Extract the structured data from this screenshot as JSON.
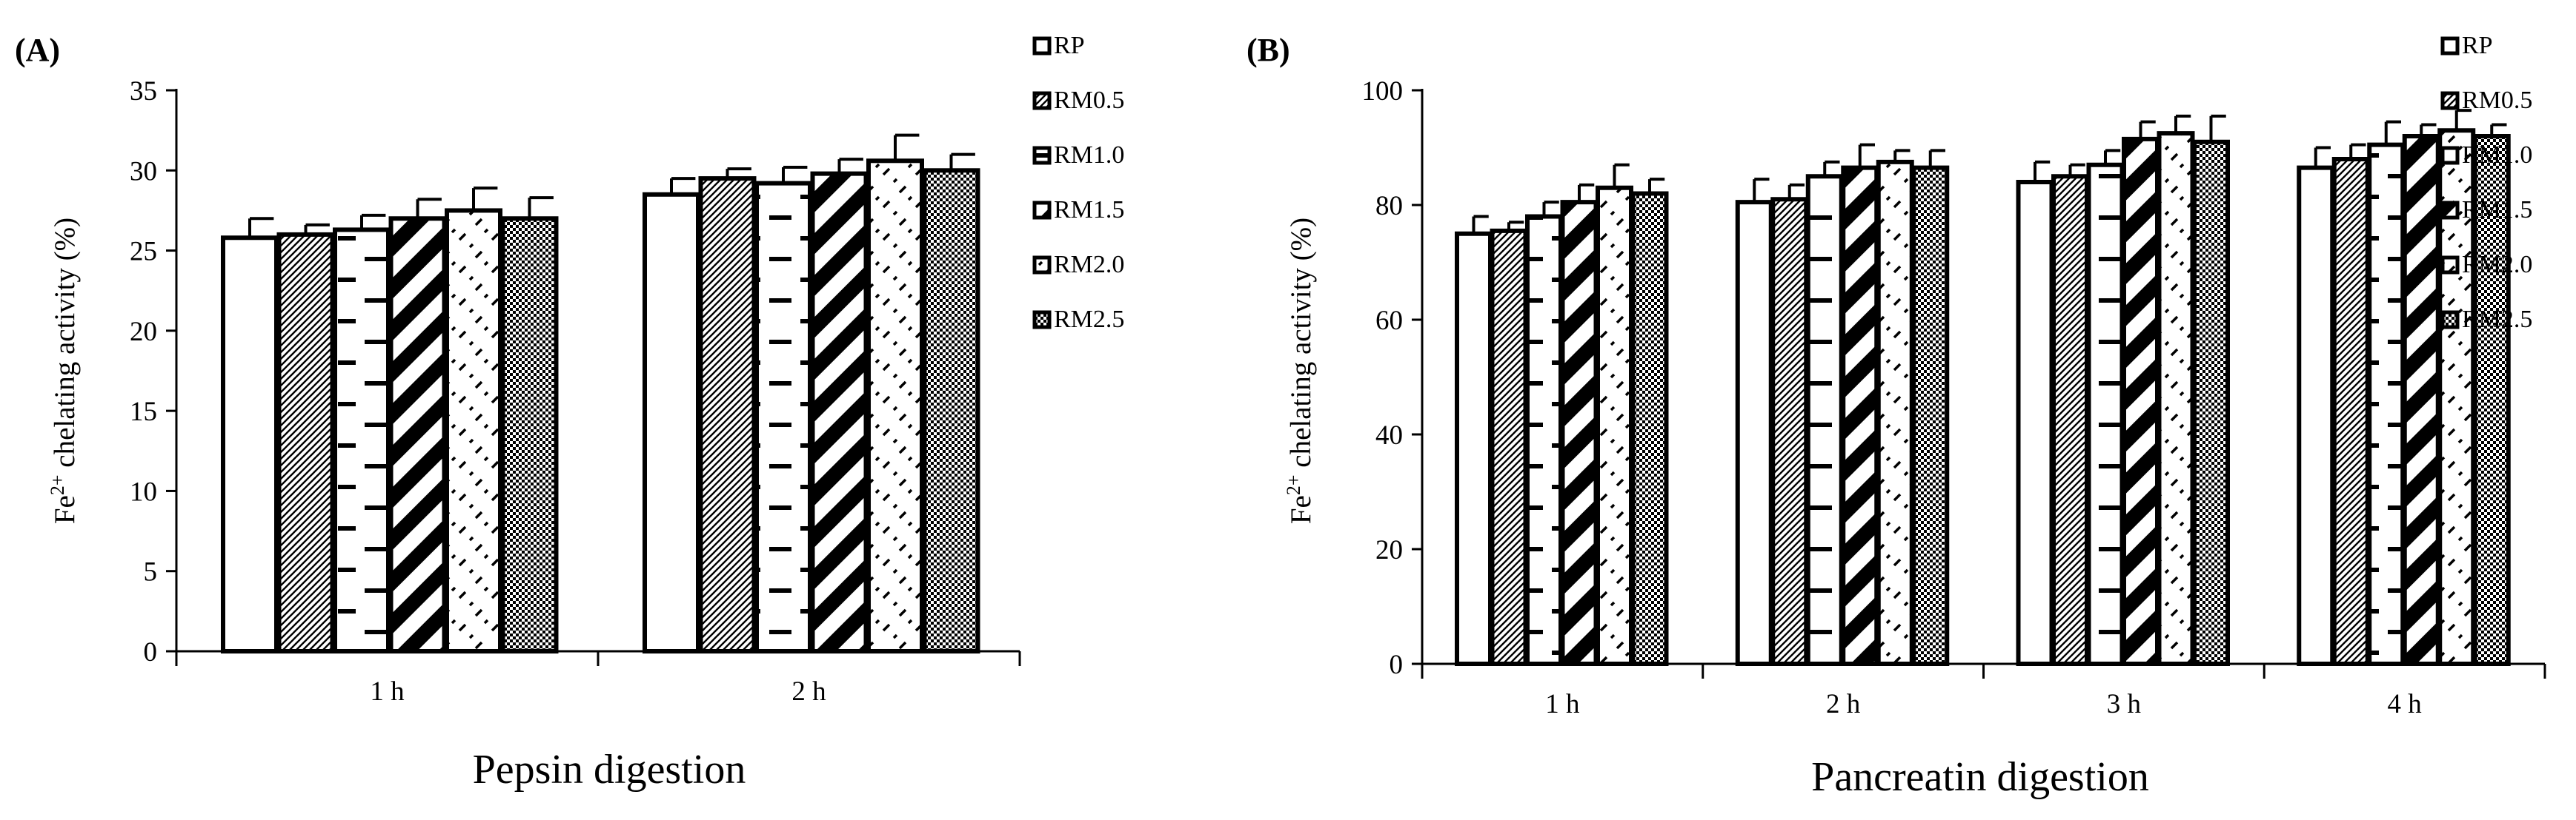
{
  "chart_data": [
    {
      "panel": "(A)",
      "type": "bar",
      "xlabel": "Pepsin digestion",
      "ylabel_main": "Fe",
      "ylabel_sup": "2+",
      "ylabel_rest": " chelating activity (%)",
      "categories": [
        "1 h",
        "2 h"
      ],
      "ylim": [
        0,
        35
      ],
      "yticks": [
        0,
        5,
        10,
        15,
        20,
        25,
        30,
        35
      ],
      "legend_position": "right",
      "series": [
        {
          "name": "RP",
          "pattern": "white",
          "values": [
            25.8,
            28.5
          ],
          "errors": [
            1.2,
            1.0
          ]
        },
        {
          "name": "RM0.5",
          "pattern": "diag-fine",
          "values": [
            26.0,
            29.5
          ],
          "errors": [
            0.6,
            0.6
          ]
        },
        {
          "name": "RM1.0",
          "pattern": "dash",
          "values": [
            26.3,
            29.2
          ],
          "errors": [
            0.9,
            1.0
          ]
        },
        {
          "name": "RM1.5",
          "pattern": "diag-wide",
          "values": [
            27.0,
            29.8
          ],
          "errors": [
            1.2,
            0.9
          ]
        },
        {
          "name": "RM2.0",
          "pattern": "dotdash",
          "values": [
            27.5,
            30.6
          ],
          "errors": [
            1.4,
            1.6
          ]
        },
        {
          "name": "RM2.5",
          "pattern": "checker",
          "values": [
            27.0,
            30.0
          ],
          "errors": [
            1.3,
            1.0
          ]
        }
      ]
    },
    {
      "panel": "(B)",
      "type": "bar",
      "xlabel": "Pancreatin digestion",
      "ylabel_main": "Fe",
      "ylabel_sup": "2+",
      "ylabel_rest": " chelating activity (%)",
      "categories": [
        "1 h",
        "2 h",
        "3 h",
        "4 h"
      ],
      "ylim": [
        0,
        100
      ],
      "yticks": [
        0,
        20,
        40,
        60,
        80,
        100
      ],
      "legend_position": "right",
      "series": [
        {
          "name": "RP",
          "pattern": "white",
          "values": [
            75.0,
            80.5,
            84.0,
            86.5
          ],
          "errors": [
            3.0,
            4.0,
            3.5,
            3.5
          ]
        },
        {
          "name": "RM0.5",
          "pattern": "diag-fine",
          "values": [
            75.5,
            81.0,
            85.0,
            88.0
          ],
          "errors": [
            1.5,
            2.5,
            2.0,
            2.5
          ]
        },
        {
          "name": "RM1.0",
          "pattern": "dash",
          "values": [
            78.0,
            85.0,
            87.0,
            90.5
          ],
          "errors": [
            2.5,
            2.5,
            2.5,
            4.0
          ]
        },
        {
          "name": "RM1.5",
          "pattern": "diag-wide",
          "values": [
            80.5,
            86.5,
            91.5,
            92.0
          ],
          "errors": [
            3.0,
            4.0,
            3.0,
            2.0
          ]
        },
        {
          "name": "RM2.0",
          "pattern": "dotdash",
          "values": [
            83.0,
            87.5,
            92.5,
            93.0
          ],
          "errors": [
            4.0,
            2.0,
            3.0,
            3.5
          ]
        },
        {
          "name": "RM2.5",
          "pattern": "checker",
          "values": [
            82.0,
            86.5,
            91.0,
            92.0
          ],
          "errors": [
            2.5,
            3.0,
            4.5,
            2.0
          ]
        }
      ]
    }
  ]
}
